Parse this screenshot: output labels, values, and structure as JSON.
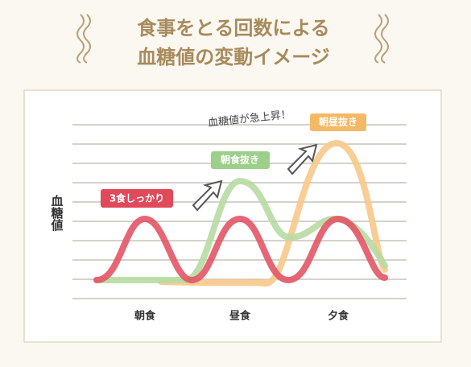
{
  "header": {
    "title_lines": [
      "食事をとる回数による",
      "血糖値の変動イメージ"
    ]
  },
  "diagram": {
    "y_label": "血糖値",
    "x_labels": [
      "朝食",
      "昼食",
      "夕食"
    ],
    "series_labels": [
      "3食しっかり",
      "朝食抜き",
      "朝昼抜き"
    ],
    "annotation": "血糖値が急上昇！"
  }
}
